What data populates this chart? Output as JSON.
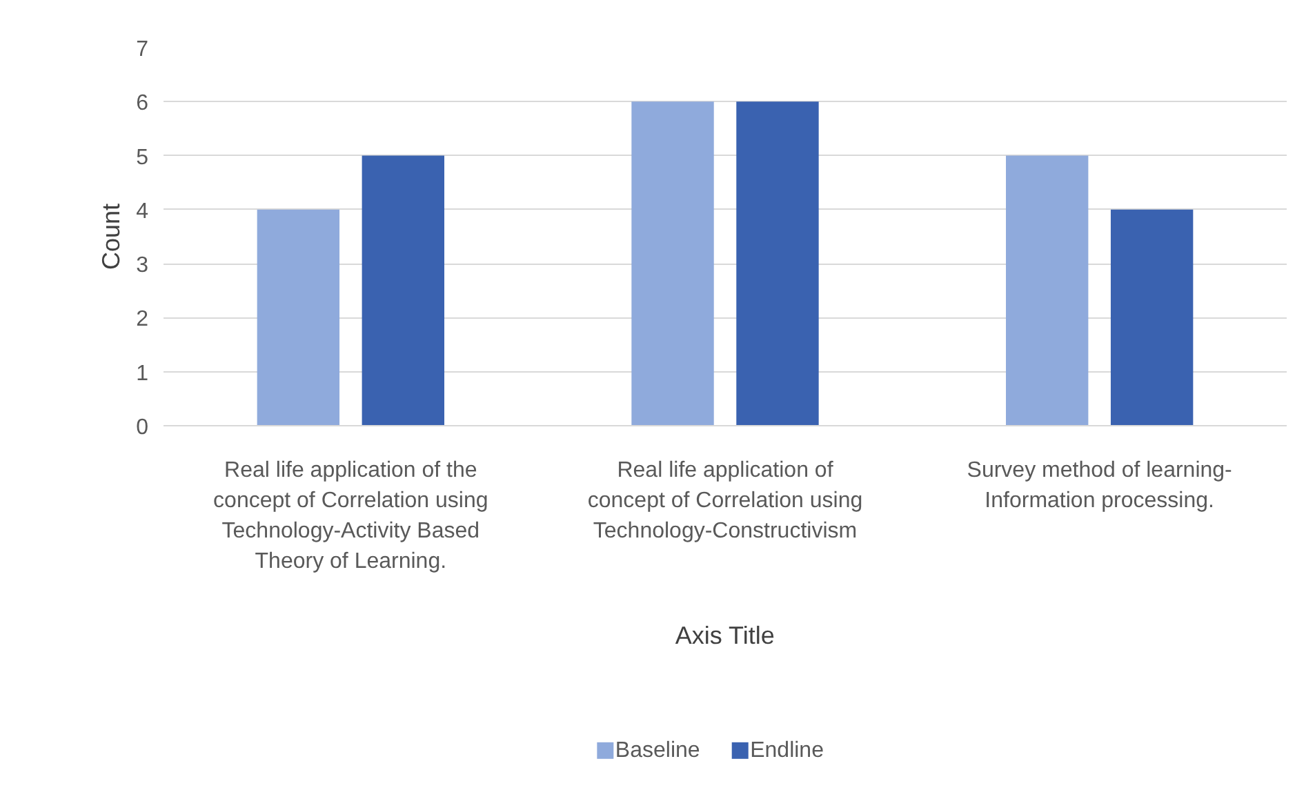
{
  "chart_data": {
    "type": "bar",
    "xlabel": "Axis Title",
    "ylabel": "Count",
    "categories": [
      "Real life application of the concept of Correlation using Technology-Activity Based Theory of Learning.",
      "Real life application of concept of Correlation using Technology-Constructivism",
      "Survey method of learning-Information processing."
    ],
    "series": [
      {
        "name": "Baseline",
        "color": "#8faadc",
        "values": [
          4,
          6,
          5
        ]
      },
      {
        "name": "Endline",
        "color": "#3a62b0",
        "values": [
          5,
          6,
          4
        ]
      }
    ],
    "ylim": [
      0,
      7
    ],
    "yticks": [
      0,
      1,
      2,
      3,
      4,
      5,
      6,
      7
    ],
    "grid": "y",
    "legend": "bottom"
  }
}
